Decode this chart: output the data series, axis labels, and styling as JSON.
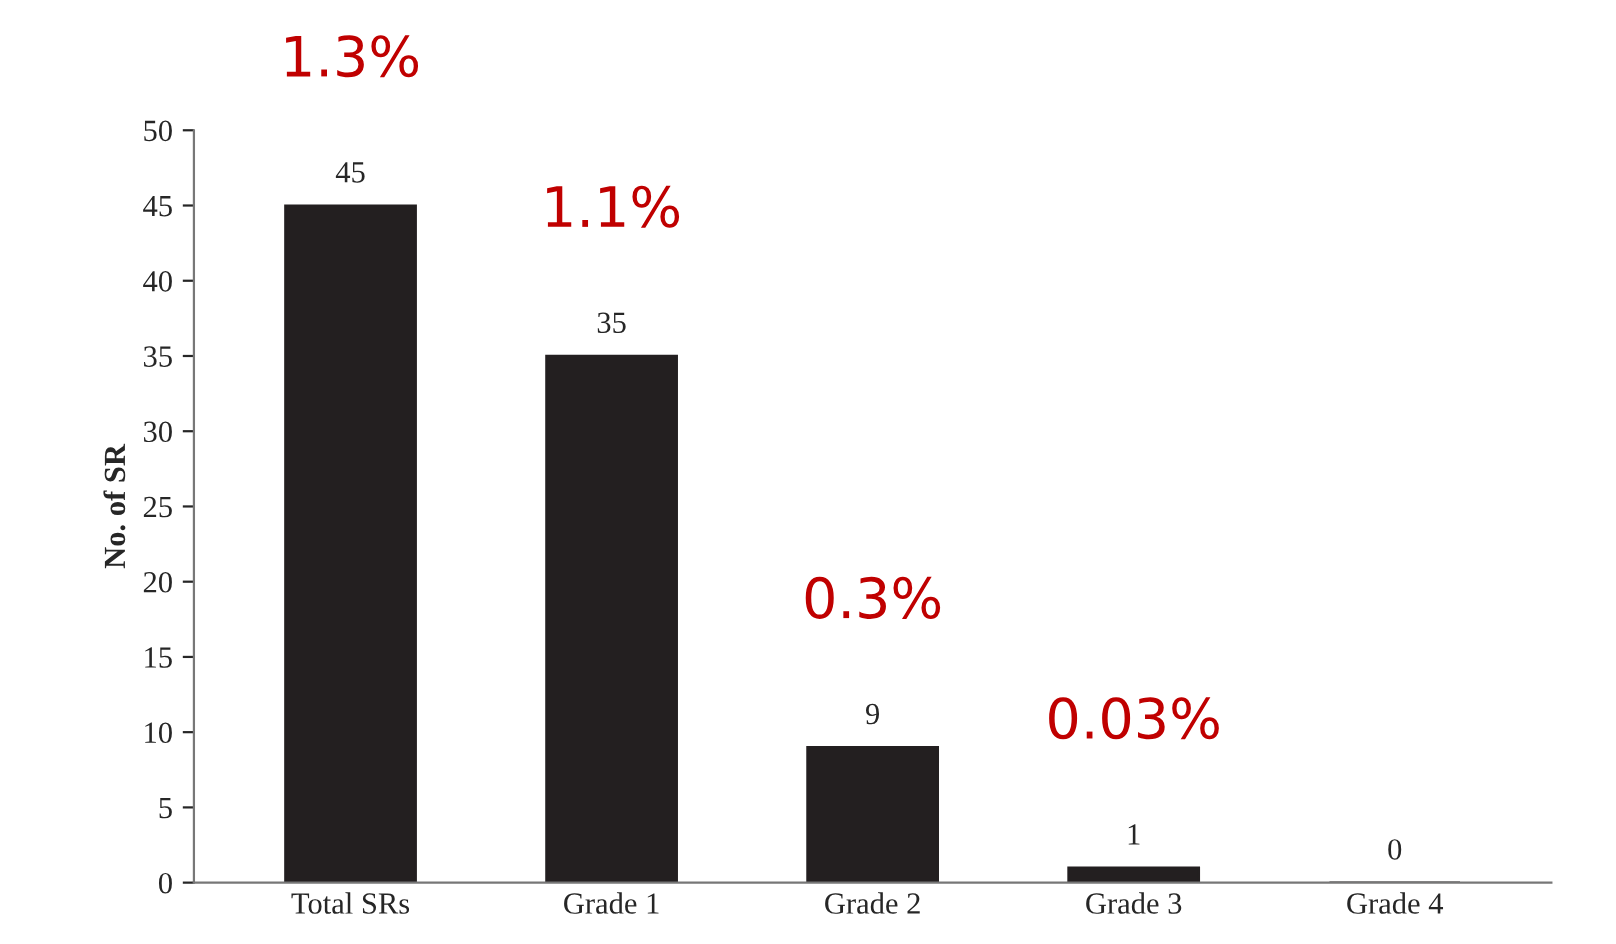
{
  "chart_data": {
    "type": "bar",
    "ylabel": "No. of SR",
    "categories": [
      "Total SRs",
      "Grade 1",
      "Grade 2",
      "Grade 3",
      "Grade 4"
    ],
    "values": [
      45,
      35,
      9,
      1,
      0
    ],
    "color": "#231f20",
    "ylim": [
      0,
      50
    ],
    "yticks": [
      0,
      5,
      10,
      15,
      20,
      25,
      30,
      35,
      40,
      45,
      50
    ],
    "data_labels": true,
    "grid": false,
    "legend": false,
    "annotations": [
      "1.3%",
      "1.1%",
      "0.3%",
      "0.03%"
    ]
  }
}
